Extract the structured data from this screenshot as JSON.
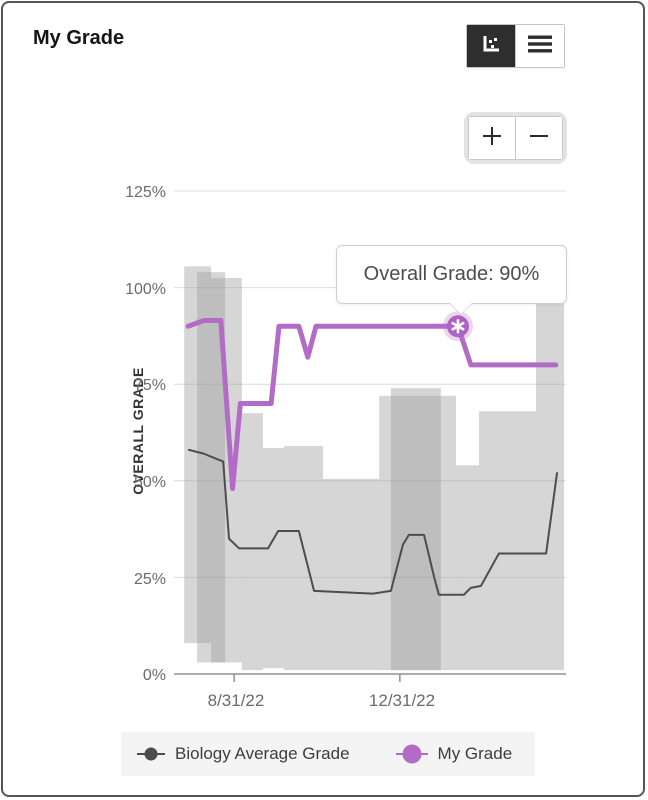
{
  "header": {
    "title": "My Grade"
  },
  "toolbar": {
    "view_toggle": {
      "options": [
        {
          "name": "chart-view",
          "icon": "scatter-chart-icon",
          "selected": true
        },
        {
          "name": "list-view",
          "icon": "hamburger-menu-icon",
          "selected": false
        }
      ]
    },
    "zoom_controls": {
      "zoom_in_icon": "plus-icon",
      "zoom_out_icon": "minus-icon"
    }
  },
  "tooltip": {
    "text": "Overall Grade: 90%"
  },
  "legend": {
    "items": [
      {
        "label": "Biology Average Grade",
        "color": "#4d4d4d"
      },
      {
        "label": "My Grade",
        "color": "#b26cc6"
      }
    ]
  },
  "chart_data": {
    "type": "line",
    "title": "My Grade",
    "ylabel": "OVERALL GRADE",
    "xlabel": "",
    "ylim": [
      0,
      125
    ],
    "grid": true,
    "grid_values": [
      125,
      100,
      75,
      50,
      25,
      0
    ],
    "y_ticks": [
      "125%",
      "100%",
      "75%",
      "50%",
      "25%",
      "0%"
    ],
    "x_ticks": [
      "8/31/22",
      "12/31/22"
    ],
    "x_tick_pos": [
      14.9,
      57.4
    ],
    "band_color": "rgba(158,158,158,0.42)",
    "band_note": "gray class-grade range band; rects are [x1%, x2%, topGrade%, bottomGrade%] along time axis",
    "band_rects": [
      [
        2.1,
        9.0,
        105.5,
        8
      ],
      [
        5.4,
        12.6,
        104,
        3
      ],
      [
        9.0,
        16.9,
        102.5,
        3
      ],
      [
        16.9,
        22.3,
        67.5,
        1
      ],
      [
        22.3,
        27.7,
        58.5,
        1.5
      ],
      [
        27.7,
        37.7,
        59,
        1
      ],
      [
        37.7,
        52.1,
        50.5,
        1
      ],
      [
        52.1,
        71.8,
        72,
        1
      ],
      [
        55.1,
        67.9,
        74,
        1
      ],
      [
        71.8,
        77.7,
        54,
        1
      ],
      [
        77.7,
        92.3,
        68,
        1
      ],
      [
        92.3,
        99.5,
        96.5,
        1
      ]
    ],
    "series": [
      {
        "name": "Biology Average Grade",
        "color": "#4d4d4d",
        "line_width": 2,
        "points": [
          [
            3.3,
            58
          ],
          [
            7.2,
            57
          ],
          [
            10.8,
            55.5
          ],
          [
            12.1,
            55
          ],
          [
            13.6,
            35
          ],
          [
            16.2,
            32.5
          ],
          [
            23.6,
            32.5
          ],
          [
            26.2,
            37
          ],
          [
            31.5,
            37
          ],
          [
            35.4,
            21.5
          ],
          [
            46.2,
            21
          ],
          [
            50.5,
            20.8
          ],
          [
            55.1,
            21.5
          ],
          [
            58.2,
            33.5
          ],
          [
            59.7,
            36
          ],
          [
            63.6,
            36
          ],
          [
            66.2,
            25
          ],
          [
            67.4,
            20.5
          ],
          [
            73.8,
            20.5
          ],
          [
            75.6,
            22.3
          ],
          [
            78.2,
            22.8
          ],
          [
            82.8,
            31.2
          ],
          [
            94.9,
            31.2
          ],
          [
            97.7,
            52
          ]
        ]
      },
      {
        "name": "My Grade",
        "color": "#b26cc6",
        "line_width": 5,
        "points": [
          [
            3.1,
            90
          ],
          [
            7.2,
            91.5
          ],
          [
            11.5,
            91.5
          ],
          [
            14.5,
            48
          ],
          [
            16.5,
            70
          ],
          [
            24.4,
            70
          ],
          [
            26.4,
            90
          ],
          [
            31.5,
            90
          ],
          [
            33.8,
            82
          ],
          [
            35.9,
            90
          ],
          [
            72.3,
            90
          ],
          [
            75.6,
            80
          ],
          [
            97.4,
            80
          ]
        ]
      }
    ],
    "highlight": {
      "series": "My Grade",
      "x": 72.3,
      "value": 90,
      "label": "Overall Grade: 90%",
      "marker": "asterisk-badge-icon",
      "marker_color": "#ae63c3",
      "halo_color": "rgba(178,107,197,0.28)"
    }
  }
}
